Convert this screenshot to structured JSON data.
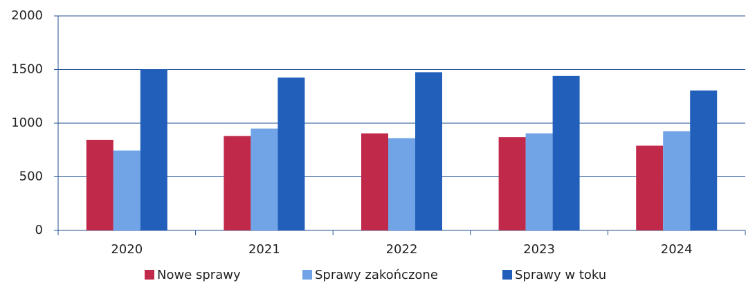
{
  "chart_data": {
    "type": "bar",
    "categories": [
      "2020",
      "2021",
      "2022",
      "2023",
      "2024"
    ],
    "series": [
      {
        "name": "Nowe sprawy",
        "color": "#c0294a",
        "values": [
          845,
          880,
          905,
          870,
          790
        ]
      },
      {
        "name": "Sprawy zakończone",
        "color": "#70a4e6",
        "values": [
          745,
          950,
          860,
          905,
          925
        ]
      },
      {
        "name": "Sprawy w toku",
        "color": "#225fbb",
        "values": [
          1500,
          1425,
          1475,
          1440,
          1305
        ]
      }
    ],
    "ylim": [
      0,
      2000
    ],
    "yticks": [
      0,
      500,
      1000,
      1500,
      2000
    ],
    "grid": true,
    "legend": "bottom"
  }
}
